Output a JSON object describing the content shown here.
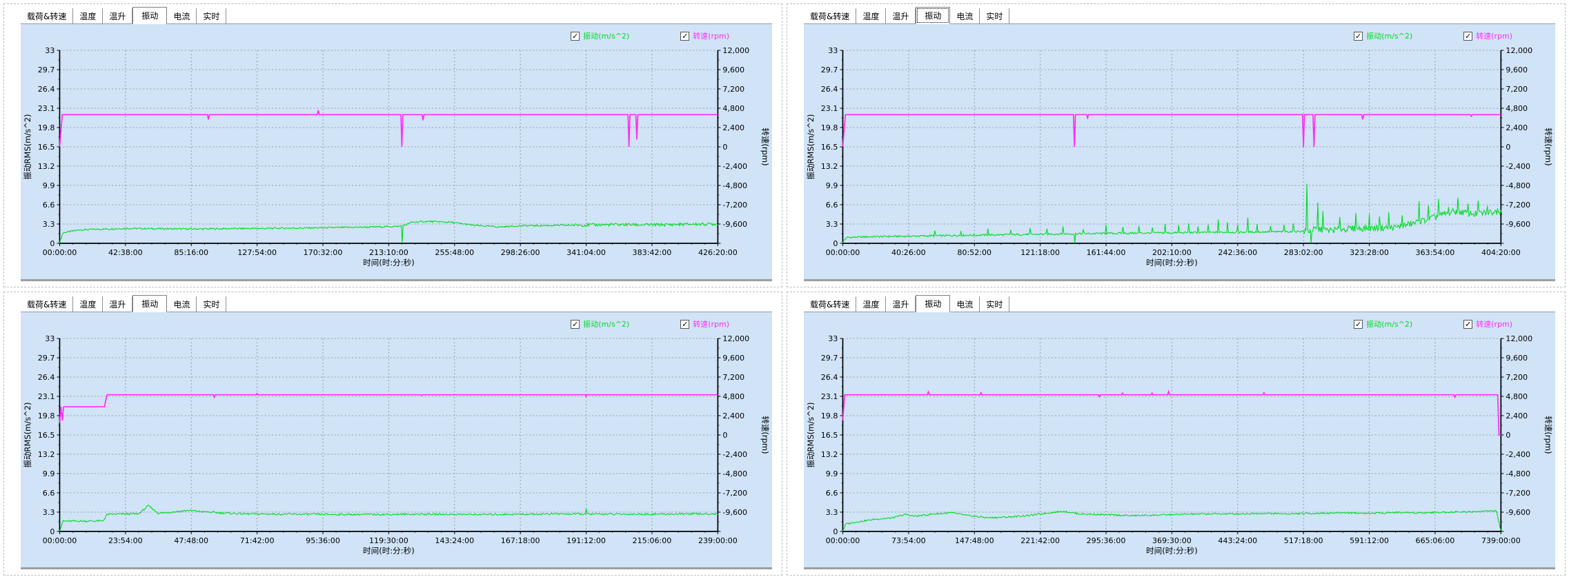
{
  "window": {
    "background": "#ffffff",
    "panel_border": "#bdbdbd",
    "chart_background": "#d0e3f7"
  },
  "tabs": [
    "载荷&转速",
    "温度",
    "温升",
    "振动",
    "电流",
    "实时"
  ],
  "active_tab": "振动",
  "focused_panel_index": 1,
  "legend": {
    "vib_label": "振动(m/s^2)",
    "rpm_label": "转速(rpm)",
    "vib_checked": true,
    "rpm_checked": true,
    "check_glyph": "✓",
    "vib_color": "#00dd22",
    "rpm_color": "#ff2bff"
  },
  "axes": {
    "left_label": "振动RMS(m/s^2)",
    "right_label": "转速(rpm)",
    "x_label": "时间(时:分:秒)",
    "left_ticks": [
      33,
      29.7,
      26.4,
      23.1,
      19.8,
      16.5,
      13.2,
      9.9,
      6.6,
      3.3,
      0
    ],
    "right_tick_labels": [
      "12,000",
      "9,600",
      "7,200",
      "4,800",
      "2,400",
      "0",
      "-2,400",
      "-4,800",
      "-7,200",
      "-9,600"
    ],
    "vib_range": [
      0,
      33
    ],
    "rpm_range": [
      -12000,
      12000
    ],
    "grid": "dashed"
  },
  "chart_data": [
    {
      "type": "line",
      "position": "top-left",
      "x_ticks": [
        "00:00:00",
        "42:38:00",
        "85:16:00",
        "127:54:00",
        "170:32:00",
        "213:10:00",
        "255:48:00",
        "298:26:00",
        "341:04:00",
        "383:42:00",
        "426:20:00"
      ],
      "series": [
        {
          "name": "振动",
          "unit": "m/s^2"
        },
        {
          "name": "转速",
          "unit": "rpm"
        }
      ],
      "rpm_keypoints": [
        [
          0,
          0
        ],
        [
          0.004,
          4000
        ],
        [
          1,
          4000
        ]
      ],
      "rpm_spikes": [
        [
          0.226,
          3400
        ],
        [
          0.393,
          4550
        ],
        [
          0.52,
          0
        ],
        [
          0.552,
          3300
        ],
        [
          0.865,
          0
        ],
        [
          0.877,
          900
        ]
      ],
      "vib_keypoints": [
        [
          0,
          0.1
        ],
        [
          0.005,
          1.8
        ],
        [
          0.03,
          2.3
        ],
        [
          0.1,
          2.55
        ],
        [
          0.2,
          2.45
        ],
        [
          0.3,
          2.55
        ],
        [
          0.4,
          2.65
        ],
        [
          0.48,
          2.8
        ],
        [
          0.515,
          2.9
        ],
        [
          0.525,
          3.1
        ],
        [
          0.535,
          3.6
        ],
        [
          0.56,
          3.75
        ],
        [
          0.595,
          3.6
        ],
        [
          0.63,
          3.05
        ],
        [
          0.67,
          2.8
        ],
        [
          0.7,
          3.0
        ],
        [
          0.75,
          3.05
        ],
        [
          0.8,
          3.15
        ],
        [
          0.85,
          3.2
        ],
        [
          0.9,
          3.15
        ],
        [
          0.95,
          3.25
        ],
        [
          1,
          3.3
        ]
      ],
      "vib_spikes": [
        [
          0.52,
          0.05
        ]
      ],
      "vib_noise": 0.14,
      "vib_noise_hi": {
        "from": 0.78,
        "amp": 0.26
      }
    },
    {
      "type": "line",
      "position": "top-right",
      "x_ticks": [
        "00:00:00",
        "40:26:00",
        "80:52:00",
        "121:18:00",
        "161:44:00",
        "202:10:00",
        "242:36:00",
        "283:02:00",
        "323:28:00",
        "363:54:00",
        "404:20:00"
      ],
      "series": [
        {
          "name": "振动",
          "unit": "m/s^2"
        },
        {
          "name": "转速",
          "unit": "rpm"
        }
      ],
      "rpm_keypoints": [
        [
          0,
          0
        ],
        [
          0.004,
          4000
        ],
        [
          1,
          4000
        ]
      ],
      "rpm_spikes": [
        [
          0.352,
          0
        ],
        [
          0.372,
          3600
        ],
        [
          0.7,
          0
        ],
        [
          0.716,
          0
        ],
        [
          0.79,
          3400
        ],
        [
          0.955,
          3800
        ]
      ],
      "vib_keypoints": [
        [
          0,
          0.2
        ],
        [
          0.006,
          1.0
        ],
        [
          0.05,
          1.15
        ],
        [
          0.12,
          1.25
        ],
        [
          0.2,
          1.4
        ],
        [
          0.3,
          1.55
        ],
        [
          0.4,
          1.7
        ],
        [
          0.5,
          1.8
        ],
        [
          0.6,
          1.9
        ],
        [
          0.68,
          2.0
        ],
        [
          0.705,
          2.1
        ],
        [
          0.72,
          2.4
        ],
        [
          0.74,
          2.2
        ],
        [
          0.77,
          2.5
        ],
        [
          0.8,
          2.6
        ],
        [
          0.84,
          2.7
        ],
        [
          0.87,
          3.5
        ],
        [
          0.9,
          4.5
        ],
        [
          0.93,
          5.5
        ],
        [
          0.96,
          5.0
        ],
        [
          1,
          5.5
        ]
      ],
      "vib_spikes": [
        [
          0.14,
          2.2
        ],
        [
          0.18,
          2.1
        ],
        [
          0.22,
          2.5
        ],
        [
          0.255,
          2.3
        ],
        [
          0.285,
          2.6
        ],
        [
          0.31,
          2.5
        ],
        [
          0.335,
          2.9
        ],
        [
          0.352,
          0.05
        ],
        [
          0.365,
          2.4
        ],
        [
          0.4,
          3.2
        ],
        [
          0.425,
          2.8
        ],
        [
          0.45,
          3.0
        ],
        [
          0.47,
          2.7
        ],
        [
          0.49,
          3.3
        ],
        [
          0.51,
          3.1
        ],
        [
          0.525,
          3.4
        ],
        [
          0.54,
          2.9
        ],
        [
          0.555,
          3.2
        ],
        [
          0.57,
          4.1
        ],
        [
          0.585,
          3.6
        ],
        [
          0.6,
          3.2
        ],
        [
          0.615,
          4.4
        ],
        [
          0.63,
          3.3
        ],
        [
          0.65,
          3.0
        ],
        [
          0.67,
          3.2
        ],
        [
          0.685,
          3.4
        ],
        [
          0.705,
          10.2
        ],
        [
          0.712,
          0.05
        ],
        [
          0.722,
          7.0
        ],
        [
          0.73,
          5.5
        ],
        [
          0.755,
          4.5
        ],
        [
          0.78,
          5.2
        ],
        [
          0.8,
          5.0
        ],
        [
          0.815,
          4.6
        ],
        [
          0.83,
          5.3
        ],
        [
          0.85,
          4.8
        ],
        [
          0.875,
          7.2
        ],
        [
          0.89,
          6.5
        ],
        [
          0.905,
          7.6
        ],
        [
          0.92,
          6.2
        ],
        [
          0.935,
          7.8
        ],
        [
          0.95,
          6.8
        ],
        [
          0.965,
          7.3
        ],
        [
          0.98,
          6.4
        ],
        [
          0.995,
          6.0
        ]
      ],
      "vib_noise": 0.16,
      "vib_noise_hi": {
        "from": 0.7,
        "amp": 0.55
      }
    },
    {
      "type": "line",
      "position": "bottom-left",
      "x_ticks": [
        "00:00:00",
        "23:54:00",
        "47:48:00",
        "71:42:00",
        "95:36:00",
        "119:30:00",
        "143:24:00",
        "167:18:00",
        "191:12:00",
        "215:06:00",
        "239:00:00"
      ],
      "series": [
        {
          "name": "振动",
          "unit": "m/s^2"
        },
        {
          "name": "转速",
          "unit": "rpm"
        }
      ],
      "rpm_keypoints": [
        [
          0,
          1500
        ],
        [
          0.002,
          3500
        ],
        [
          0.004,
          1800
        ],
        [
          0.006,
          3500
        ],
        [
          0.068,
          3500
        ],
        [
          0.072,
          5000
        ],
        [
          1,
          5000
        ]
      ],
      "rpm_spikes": [
        [
          0.235,
          4700
        ],
        [
          0.3,
          5150
        ],
        [
          0.55,
          4900
        ],
        [
          0.8,
          4800
        ]
      ],
      "vib_keypoints": [
        [
          0,
          0.1
        ],
        [
          0.005,
          1.75
        ],
        [
          0.066,
          1.8
        ],
        [
          0.072,
          2.9
        ],
        [
          0.1,
          3.0
        ],
        [
          0.12,
          3.0
        ],
        [
          0.135,
          4.4
        ],
        [
          0.15,
          3.1
        ],
        [
          0.17,
          3.3
        ],
        [
          0.195,
          3.6
        ],
        [
          0.215,
          3.4
        ],
        [
          0.24,
          3.2
        ],
        [
          0.28,
          3.0
        ],
        [
          0.35,
          2.95
        ],
        [
          0.45,
          2.9
        ],
        [
          0.55,
          2.95
        ],
        [
          0.65,
          2.9
        ],
        [
          0.75,
          3.0
        ],
        [
          0.85,
          2.95
        ],
        [
          1,
          3.0
        ]
      ],
      "vib_spikes": [
        [
          0.8,
          3.9
        ]
      ],
      "vib_noise": 0.16,
      "vib_noise_hi": null
    },
    {
      "type": "line",
      "position": "bottom-right",
      "x_ticks": [
        "00:00:00",
        "73:54:00",
        "147:48:00",
        "221:42:00",
        "295:36:00",
        "369:30:00",
        "443:24:00",
        "517:18:00",
        "591:12:00",
        "665:06:00",
        "739:00:00"
      ],
      "series": [
        {
          "name": "振动",
          "unit": "m/s^2"
        },
        {
          "name": "转速",
          "unit": "rpm"
        }
      ],
      "rpm_keypoints": [
        [
          0,
          1800
        ],
        [
          0.003,
          5000
        ],
        [
          0.995,
          5000
        ],
        [
          0.997,
          0
        ],
        [
          1,
          0
        ]
      ],
      "rpm_spikes": [
        [
          0.13,
          5350
        ],
        [
          0.21,
          5250
        ],
        [
          0.39,
          4750
        ],
        [
          0.425,
          5200
        ],
        [
          0.47,
          5200
        ],
        [
          0.495,
          5400
        ],
        [
          0.64,
          5250
        ],
        [
          0.93,
          4700
        ]
      ],
      "vib_keypoints": [
        [
          0,
          0.1
        ],
        [
          0.005,
          1.3
        ],
        [
          0.02,
          1.6
        ],
        [
          0.05,
          2.1
        ],
        [
          0.075,
          2.3
        ],
        [
          0.095,
          2.9
        ],
        [
          0.11,
          2.6
        ],
        [
          0.14,
          3.0
        ],
        [
          0.165,
          3.2
        ],
        [
          0.19,
          2.7
        ],
        [
          0.22,
          2.35
        ],
        [
          0.25,
          2.45
        ],
        [
          0.285,
          2.75
        ],
        [
          0.315,
          3.2
        ],
        [
          0.335,
          3.45
        ],
        [
          0.36,
          3.0
        ],
        [
          0.4,
          2.85
        ],
        [
          0.44,
          2.7
        ],
        [
          0.48,
          2.8
        ],
        [
          0.52,
          2.95
        ],
        [
          0.56,
          3.0
        ],
        [
          0.6,
          3.0
        ],
        [
          0.64,
          3.1
        ],
        [
          0.68,
          3.0
        ],
        [
          0.72,
          3.1
        ],
        [
          0.76,
          3.2
        ],
        [
          0.8,
          3.1
        ],
        [
          0.84,
          3.25
        ],
        [
          0.88,
          3.2
        ],
        [
          0.92,
          3.3
        ],
        [
          0.96,
          3.4
        ],
        [
          0.99,
          3.5
        ],
        [
          0.993,
          3.5
        ],
        [
          1,
          0.1
        ]
      ],
      "vib_spikes": [],
      "vib_noise": 0.14,
      "vib_noise_hi": null
    }
  ]
}
